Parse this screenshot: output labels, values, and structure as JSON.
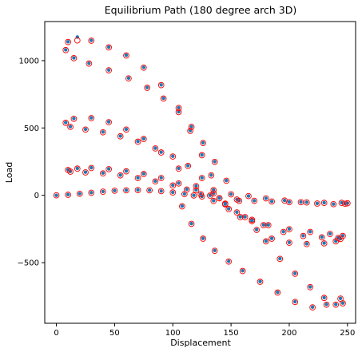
{
  "chart_data": {
    "type": "scatter",
    "title": "Equilibrium Path (180 degree arch 3D)",
    "xlabel": "Displacement",
    "ylabel": "Load",
    "xlim": [
      -10,
      257
    ],
    "ylim": [
      -950,
      1290
    ],
    "xticks": [
      0,
      50,
      100,
      150,
      200,
      250
    ],
    "yticks": [
      -500,
      0,
      500,
      1000
    ],
    "xtick_labels": [
      "0",
      "50",
      "100",
      "150",
      "200",
      "250"
    ],
    "ytick_labels": [
      "−500",
      "0",
      "500",
      "1000"
    ],
    "grid": false,
    "legend": "none",
    "colors": {
      "dots": "#1f77b4",
      "circles": "#ff0000"
    },
    "series": [
      {
        "marker": "filled-dot",
        "color": "#1f77b4",
        "points": [
          [
            0,
            0
          ],
          [
            10,
            5
          ],
          [
            20,
            12
          ],
          [
            30,
            20
          ],
          [
            40,
            28
          ],
          [
            50,
            35
          ],
          [
            60,
            38
          ],
          [
            70,
            40
          ],
          [
            80,
            38
          ],
          [
            90,
            32
          ],
          [
            100,
            22
          ],
          [
            110,
            10
          ],
          [
            118,
            0
          ],
          [
            125,
            -8
          ],
          [
            140,
            -20
          ],
          [
            155,
            -30
          ],
          [
            170,
            -40
          ],
          [
            185,
            -45
          ],
          [
            200,
            -50
          ],
          [
            215,
            -52
          ],
          [
            230,
            -55
          ],
          [
            245,
            -55
          ],
          [
            250,
            -58
          ],
          [
            248,
            -62
          ],
          [
            238,
            -65
          ],
          [
            224,
            -60
          ],
          [
            210,
            -50
          ],
          [
            196,
            -38
          ],
          [
            180,
            -22
          ],
          [
            165,
            -5
          ],
          [
            150,
            8
          ],
          [
            135,
            15
          ],
          [
            120,
            40
          ],
          [
            105,
            90
          ],
          [
            90,
            130
          ],
          [
            75,
            160
          ],
          [
            60,
            180
          ],
          [
            45,
            196
          ],
          [
            30,
            205
          ],
          [
            18,
            200
          ],
          [
            10,
            190
          ],
          [
            12,
            178
          ],
          [
            25,
            172
          ],
          [
            40,
            165
          ],
          [
            55,
            150
          ],
          [
            70,
            130
          ],
          [
            85,
            105
          ],
          [
            100,
            75
          ],
          [
            112,
            45
          ],
          [
            124,
            10
          ],
          [
            135,
            -40
          ],
          [
            148,
            -100
          ],
          [
            162,
            -160
          ],
          [
            178,
            -220
          ],
          [
            195,
            -270
          ],
          [
            212,
            -300
          ],
          [
            228,
            -310
          ],
          [
            242,
            -315
          ],
          [
            246,
            -300
          ],
          [
            235,
            -285
          ],
          [
            218,
            -270
          ],
          [
            200,
            -250
          ],
          [
            182,
            -220
          ],
          [
            168,
            -180
          ],
          [
            155,
            -125
          ],
          [
            145,
            -65
          ],
          [
            132,
            0
          ],
          [
            120,
            70
          ],
          [
            105,
            200
          ],
          [
            90,
            320
          ],
          [
            75,
            420
          ],
          [
            60,
            490
          ],
          [
            45,
            545
          ],
          [
            30,
            575
          ],
          [
            15,
            570
          ],
          [
            8,
            540
          ],
          [
            12,
            510
          ],
          [
            25,
            490
          ],
          [
            40,
            470
          ],
          [
            55,
            440
          ],
          [
            70,
            400
          ],
          [
            85,
            350
          ],
          [
            100,
            290
          ],
          [
            113,
            220
          ],
          [
            125,
            130
          ],
          [
            135,
            40
          ],
          [
            145,
            -60
          ],
          [
            158,
            -160
          ],
          [
            172,
            -255
          ],
          [
            185,
            -320
          ],
          [
            200,
            -350
          ],
          [
            215,
            -360
          ],
          [
            230,
            -355
          ],
          [
            240,
            -340
          ],
          [
            244,
            -322
          ],
          [
            140,
            -20
          ],
          [
            133,
            150
          ],
          [
            125,
            300
          ],
          [
            115,
            480
          ],
          [
            105,
            650
          ],
          [
            90,
            820
          ],
          [
            75,
            950
          ],
          [
            60,
            1040
          ],
          [
            45,
            1100
          ],
          [
            30,
            1150
          ],
          [
            18,
            1175
          ],
          [
            10,
            1140
          ],
          [
            8,
            1080
          ],
          [
            15,
            1020
          ],
          [
            28,
            980
          ],
          [
            45,
            930
          ],
          [
            62,
            870
          ],
          [
            78,
            800
          ],
          [
            92,
            720
          ],
          [
            105,
            620
          ],
          [
            116,
            510
          ],
          [
            126,
            390
          ],
          [
            136,
            250
          ],
          [
            146,
            110
          ],
          [
            157,
            -40
          ],
          [
            168,
            -190
          ],
          [
            180,
            -340
          ],
          [
            192,
            -470
          ],
          [
            205,
            -580
          ],
          [
            218,
            -680
          ],
          [
            230,
            -760
          ],
          [
            240,
            -810
          ],
          [
            246,
            -800
          ],
          [
            244,
            -765
          ],
          [
            232,
            -810
          ],
          [
            220,
            -830
          ],
          [
            205,
            -790
          ],
          [
            190,
            -720
          ],
          [
            175,
            -640
          ],
          [
            160,
            -560
          ],
          [
            148,
            -490
          ],
          [
            136,
            -410
          ],
          [
            126,
            -320
          ],
          [
            116,
            -210
          ],
          [
            108,
            -80
          ]
        ]
      },
      {
        "marker": "hollow-circle",
        "color": "#ff0000",
        "points": [
          [
            0,
            0
          ],
          [
            10,
            4
          ],
          [
            20,
            11
          ],
          [
            30,
            19
          ],
          [
            40,
            27
          ],
          [
            50,
            34
          ],
          [
            60,
            37
          ],
          [
            70,
            39
          ],
          [
            80,
            37
          ],
          [
            90,
            31
          ],
          [
            100,
            21
          ],
          [
            110,
            9
          ],
          [
            118,
            -1
          ],
          [
            125,
            -9
          ],
          [
            140,
            -21
          ],
          [
            155,
            -31
          ],
          [
            170,
            -41
          ],
          [
            185,
            -46
          ],
          [
            200,
            -51
          ],
          [
            215,
            -53
          ],
          [
            230,
            -56
          ],
          [
            245,
            -56
          ],
          [
            250,
            -59
          ],
          [
            248,
            -63
          ],
          [
            238,
            -66
          ],
          [
            224,
            -61
          ],
          [
            210,
            -51
          ],
          [
            196,
            -39
          ],
          [
            180,
            -23
          ],
          [
            165,
            -6
          ],
          [
            150,
            7
          ],
          [
            135,
            14
          ],
          [
            120,
            38
          ],
          [
            105,
            88
          ],
          [
            90,
            128
          ],
          [
            75,
            158
          ],
          [
            60,
            178
          ],
          [
            45,
            194
          ],
          [
            30,
            203
          ],
          [
            18,
            198
          ],
          [
            10,
            188
          ],
          [
            12,
            176
          ],
          [
            25,
            170
          ],
          [
            40,
            163
          ],
          [
            55,
            148
          ],
          [
            70,
            128
          ],
          [
            85,
            103
          ],
          [
            100,
            73
          ],
          [
            112,
            43
          ],
          [
            124,
            8
          ],
          [
            135,
            -42
          ],
          [
            148,
            -102
          ],
          [
            162,
            -162
          ],
          [
            178,
            -222
          ],
          [
            195,
            -272
          ],
          [
            212,
            -302
          ],
          [
            228,
            -312
          ],
          [
            242,
            -317
          ],
          [
            246,
            -302
          ],
          [
            235,
            -287
          ],
          [
            218,
            -272
          ],
          [
            200,
            -252
          ],
          [
            182,
            -222
          ],
          [
            168,
            -182
          ],
          [
            155,
            -127
          ],
          [
            145,
            -67
          ],
          [
            132,
            -2
          ],
          [
            120,
            68
          ],
          [
            105,
            198
          ],
          [
            90,
            318
          ],
          [
            75,
            418
          ],
          [
            60,
            488
          ],
          [
            45,
            543
          ],
          [
            30,
            573
          ],
          [
            15,
            568
          ],
          [
            8,
            538
          ],
          [
            12,
            508
          ],
          [
            25,
            488
          ],
          [
            40,
            468
          ],
          [
            55,
            438
          ],
          [
            70,
            398
          ],
          [
            85,
            348
          ],
          [
            100,
            288
          ],
          [
            113,
            218
          ],
          [
            125,
            128
          ],
          [
            135,
            38
          ],
          [
            145,
            -62
          ],
          [
            158,
            -162
          ],
          [
            172,
            -257
          ],
          [
            185,
            -322
          ],
          [
            200,
            -352
          ],
          [
            215,
            -362
          ],
          [
            230,
            -357
          ],
          [
            240,
            -342
          ],
          [
            244,
            -324
          ],
          [
            140,
            -22
          ],
          [
            133,
            148
          ],
          [
            125,
            298
          ],
          [
            115,
            478
          ],
          [
            105,
            648
          ],
          [
            90,
            818
          ],
          [
            75,
            948
          ],
          [
            60,
            1038
          ],
          [
            45,
            1098
          ],
          [
            30,
            1148
          ],
          [
            18,
            1150
          ],
          [
            10,
            1138
          ],
          [
            8,
            1078
          ],
          [
            15,
            1018
          ],
          [
            28,
            978
          ],
          [
            45,
            928
          ],
          [
            62,
            868
          ],
          [
            78,
            798
          ],
          [
            92,
            718
          ],
          [
            105,
            618
          ],
          [
            116,
            508
          ],
          [
            126,
            388
          ],
          [
            136,
            248
          ],
          [
            146,
            108
          ],
          [
            157,
            -42
          ],
          [
            168,
            -192
          ],
          [
            180,
            -342
          ],
          [
            192,
            -472
          ],
          [
            205,
            -582
          ],
          [
            218,
            -682
          ],
          [
            230,
            -762
          ],
          [
            240,
            -812
          ],
          [
            246,
            -802
          ],
          [
            244,
            -767
          ],
          [
            232,
            -812
          ],
          [
            220,
            -832
          ],
          [
            205,
            -792
          ],
          [
            190,
            -722
          ],
          [
            175,
            -642
          ],
          [
            160,
            -562
          ],
          [
            148,
            -492
          ],
          [
            136,
            -412
          ],
          [
            126,
            -322
          ],
          [
            116,
            -212
          ],
          [
            108,
            -82
          ]
        ]
      }
    ]
  }
}
